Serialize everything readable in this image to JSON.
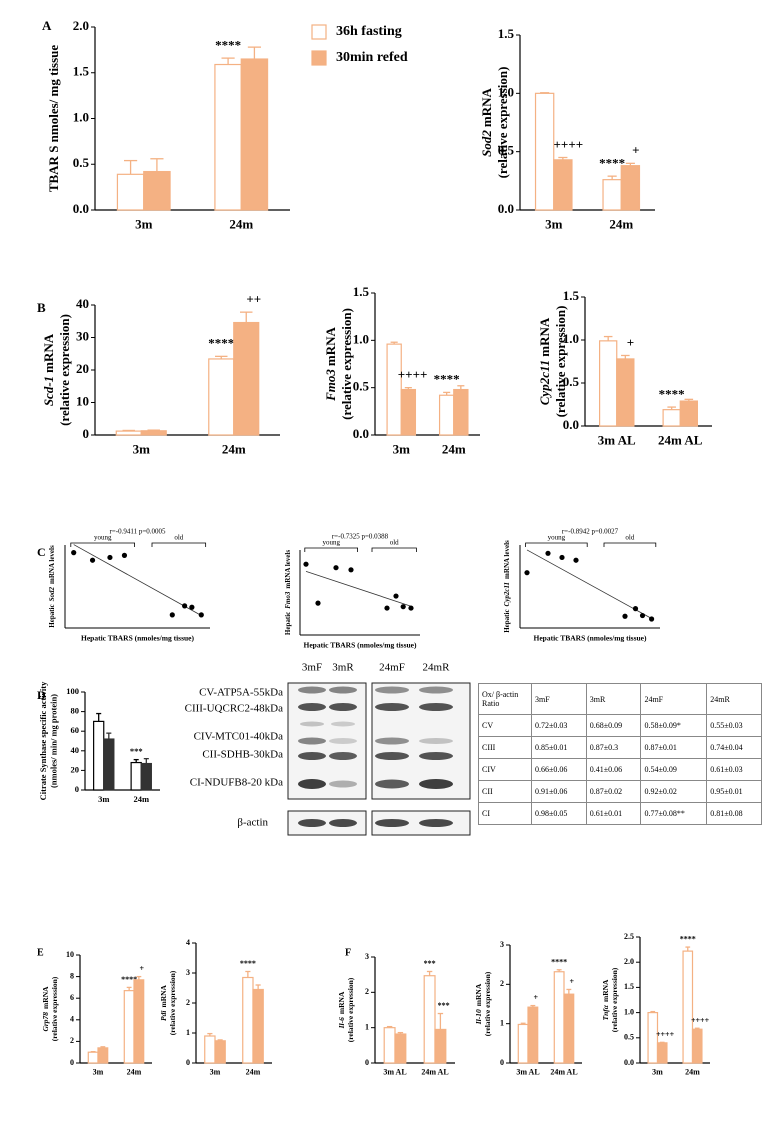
{
  "panels": [
    "A",
    "B",
    "C",
    "D",
    "E",
    "F"
  ],
  "chart_data": [
    {
      "type": "bar",
      "ylabel": "TBAR S nmoles/ mg tissue",
      "categories": [
        "3m",
        "24m"
      ],
      "series": [
        {
          "name": "36h fasting",
          "color": "#f4b183",
          "filled": false,
          "values": [
            0.39,
            1.59
          ],
          "errors": [
            0.15,
            0.07
          ],
          "annotations": [
            null,
            "****"
          ]
        },
        {
          "name": "30min refed",
          "color": "#f4b183",
          "filled": true,
          "values": [
            0.42,
            1.65
          ],
          "errors": [
            0.14,
            0.13
          ],
          "annotations": [
            null,
            null
          ]
        }
      ],
      "ylim": [
        0,
        2
      ],
      "yticks": [
        {
          "value": 0,
          "label": "0.0"
        },
        {
          "value": 0.5,
          "label": "0.5"
        },
        {
          "value": 1,
          "label": "1.0"
        },
        {
          "value": 1.5,
          "label": "1.5"
        },
        {
          "value": 2,
          "label": "2.0"
        }
      ]
    },
    {
      "type": "bar",
      "ylabel_gene": "Sod2",
      "ylabel": "mRNA",
      "ylabel_line2": "(relative expression)",
      "categories": [
        "3m",
        "24m"
      ],
      "series": [
        {
          "color": "#f4b183",
          "filled": false,
          "values": [
            1.0,
            0.26
          ],
          "errors": [
            0.005,
            0.03
          ],
          "annotations": [
            null,
            "****"
          ]
        },
        {
          "color": "#f4b183",
          "filled": true,
          "values": [
            0.43,
            0.38
          ],
          "errors": [
            0.02,
            0.02
          ],
          "annotations": [
            "++++",
            "+"
          ]
        }
      ],
      "ylim": [
        0,
        1.5
      ],
      "yticks": [
        {
          "value": 0,
          "label": "0.0"
        },
        {
          "value": 0.5,
          "label": "0.5"
        },
        {
          "value": 1,
          "label": "1.0"
        },
        {
          "value": 1.5,
          "label": "1.5"
        }
      ]
    },
    {
      "type": "bar",
      "ylabel_gene": "Scd-1",
      "ylabel": "mRNA",
      "ylabel_line2": "(relative expression)",
      "categories": [
        "3m",
        "24m"
      ],
      "series": [
        {
          "color": "#f4b183",
          "filled": false,
          "values": [
            1.2,
            23.4
          ],
          "errors": [
            0.2,
            0.8
          ],
          "annotations": [
            null,
            "****"
          ]
        },
        {
          "color": "#f4b183",
          "filled": true,
          "values": [
            1.3,
            34.6
          ],
          "errors": [
            0.2,
            3.2
          ],
          "annotations": [
            null,
            "++"
          ]
        }
      ],
      "ylim": [
        0,
        40
      ],
      "yticks": [
        0,
        10,
        20,
        30,
        40
      ]
    },
    {
      "type": "bar",
      "ylabel_gene": "Fmo3",
      "ylabel": "mRNA",
      "ylabel_line2": "(relative expression)",
      "categories": [
        "3m",
        "24m"
      ],
      "series": [
        {
          "color": "#f4b183",
          "filled": false,
          "values": [
            0.96,
            0.42
          ],
          "errors": [
            0.02,
            0.03
          ],
          "annotations": [
            null,
            "****"
          ]
        },
        {
          "color": "#f4b183",
          "filled": true,
          "values": [
            0.48,
            0.48
          ],
          "errors": [
            0.02,
            0.04
          ],
          "annotations": [
            "++++",
            null
          ]
        }
      ],
      "ylim": [
        0,
        1.5
      ],
      "yticks": [
        {
          "value": 0,
          "label": "0.0"
        },
        {
          "value": 0.5,
          "label": "0.5"
        },
        {
          "value": 1,
          "label": "1.0"
        },
        {
          "value": 1.5,
          "label": "1.5"
        }
      ]
    },
    {
      "type": "bar",
      "ylabel_gene": "Cyp2c11",
      "ylabel": "mRNA",
      "ylabel_line2": "(relative expression)",
      "categories": [
        "3m AL",
        "24m AL"
      ],
      "series": [
        {
          "color": "#f4b183",
          "filled": false,
          "values": [
            0.99,
            0.19
          ],
          "errors": [
            0.05,
            0.03
          ],
          "annotations": [
            null,
            "****"
          ]
        },
        {
          "color": "#f4b183",
          "filled": true,
          "values": [
            0.78,
            0.29
          ],
          "errors": [
            0.04,
            0.02
          ],
          "annotations": [
            "+",
            null
          ]
        }
      ],
      "ylim": [
        0,
        1.5
      ],
      "yticks": [
        {
          "value": 0,
          "label": "0.0"
        },
        {
          "value": 0.5,
          "label": "0.5"
        },
        {
          "value": 1,
          "label": "1.0"
        },
        {
          "value": 1.5,
          "label": "1.5"
        }
      ]
    },
    {
      "type": "scatter",
      "title": "r=-0.9411 p=0.0005",
      "xlabel": "Hepatic TBARS (nmoles/mg tissue)",
      "ylabel_pre": "Hepatic",
      "ylabel_gene": "Sod2",
      "ylabel": "mRNA levels",
      "bracket_labels": [
        "young",
        "old"
      ],
      "color": "#000000",
      "x": [
        0.12,
        0.38,
        0.62,
        0.82,
        1.48,
        1.65,
        1.75,
        1.88
      ],
      "y": [
        1.09,
        0.98,
        1.02,
        1.05,
        0.19,
        0.32,
        0.3,
        0.19
      ],
      "xlim": [
        0,
        2
      ],
      "ylim": [
        0,
        1.2
      ]
    },
    {
      "type": "scatter",
      "title": "r=-0.7325 p=0.0388",
      "xlabel": "Hepatic TBARS (nmoles/mg tissue)",
      "ylabel_pre": "Hepatic",
      "ylabel_gene": "Fmo3",
      "ylabel": "mRNA levels",
      "bracket_labels": [
        "young",
        "old"
      ],
      "color": "#000000",
      "x": [
        0.1,
        0.3,
        0.6,
        0.85,
        1.45,
        1.6,
        1.72,
        1.85
      ],
      "y": [
        1.0,
        0.45,
        0.95,
        0.92,
        0.38,
        0.55,
        0.4,
        0.38
      ],
      "xlim": [
        0,
        2
      ],
      "ylim": [
        0,
        1.2
      ]
    },
    {
      "type": "scatter",
      "title": "r=-0.8942 p=0.0027",
      "xlabel": "Hepatic TBARS (nmoles/mg tissue)",
      "ylabel_pre": "Hepatic",
      "ylabel_gene": "Cyp2c11",
      "ylabel": "mRNA levels",
      "bracket_labels": [
        "young",
        "old"
      ],
      "color": "#000000",
      "x": [
        0.1,
        0.4,
        0.6,
        0.8,
        1.5,
        1.65,
        1.75,
        1.88
      ],
      "y": [
        0.8,
        1.08,
        1.02,
        0.98,
        0.17,
        0.28,
        0.18,
        0.13
      ],
      "xlim": [
        0,
        2
      ],
      "ylim": [
        0,
        1.2
      ]
    },
    {
      "type": "bar",
      "ylabel": "Citrate Synthase specific activity",
      "ylabel_line2": "(nmoles/ min/ mg protein)",
      "categories": [
        "3m",
        "24m"
      ],
      "series": [
        {
          "color": "#000000",
          "filled": false,
          "values": [
            70,
            28
          ],
          "errors": [
            8,
            3
          ],
          "annotations": [
            null,
            "***"
          ]
        },
        {
          "color": "#333333",
          "filled": true,
          "values": [
            52,
            27
          ],
          "errors": [
            6,
            5
          ],
          "annotations": [
            null,
            null
          ]
        }
      ],
      "ylim": [
        0,
        100
      ],
      "yticks": [
        0,
        20,
        40,
        60,
        80,
        100
      ]
    },
    {
      "type": "bar",
      "ylabel_gene": "Grp78",
      "ylabel": "mRNA",
      "ylabel_line2": "(relative expression)",
      "categories": [
        "3m",
        "24m"
      ],
      "series": [
        {
          "color": "#f4b183",
          "filled": false,
          "values": [
            1.0,
            6.7
          ],
          "errors": [
            0.05,
            0.3
          ],
          "annotations": [
            null,
            "****"
          ]
        },
        {
          "color": "#f4b183",
          "filled": true,
          "values": [
            1.4,
            7.7
          ],
          "errors": [
            0.1,
            0.3
          ],
          "annotations": [
            null,
            "+"
          ]
        }
      ],
      "ylim": [
        0,
        10
      ],
      "yticks": [
        0,
        2,
        4,
        6,
        8,
        10
      ]
    },
    {
      "type": "bar",
      "ylabel_gene": "Pdi",
      "ylabel": "mRNA",
      "ylabel_line2": "(relative expression)",
      "categories": [
        "3m",
        "24m"
      ],
      "series": [
        {
          "color": "#f4b183",
          "filled": false,
          "values": [
            0.9,
            2.85
          ],
          "errors": [
            0.08,
            0.2
          ],
          "annotations": [
            null,
            "****"
          ]
        },
        {
          "color": "#f4b183",
          "filled": true,
          "values": [
            0.74,
            2.45
          ],
          "errors": [
            0.03,
            0.15
          ],
          "annotations": [
            null,
            null
          ]
        }
      ],
      "ylim": [
        0,
        4
      ],
      "yticks": [
        0,
        1,
        2,
        3,
        4
      ]
    },
    {
      "type": "bar",
      "ylabel_gene": "Il-6",
      "ylabel": "mRNA",
      "ylabel_line2": "(relative expression)",
      "categories": [
        "3m AL",
        "24m AL"
      ],
      "series": [
        {
          "color": "#f4b183",
          "filled": false,
          "values": [
            1.0,
            2.47
          ],
          "errors": [
            0.03,
            0.12
          ],
          "annotations": [
            null,
            "***"
          ]
        },
        {
          "color": "#f4b183",
          "filled": true,
          "values": [
            0.82,
            0.95
          ],
          "errors": [
            0.04,
            0.45
          ],
          "annotations": [
            null,
            "***"
          ]
        }
      ],
      "ylim": [
        0,
        3
      ],
      "yticks": [
        0,
        1,
        2,
        3
      ]
    },
    {
      "type": "bar",
      "ylabel_gene": "Il-10",
      "ylabel": "mRNA",
      "ylabel_line2": "(relative expression)",
      "categories": [
        "3m AL",
        "24m AL"
      ],
      "series": [
        {
          "color": "#f4b183",
          "filled": false,
          "values": [
            0.98,
            2.32
          ],
          "errors": [
            0.03,
            0.05
          ],
          "annotations": [
            null,
            "****"
          ]
        },
        {
          "color": "#f4b183",
          "filled": true,
          "values": [
            1.42,
            1.75
          ],
          "errors": [
            0.04,
            0.12
          ],
          "annotations": [
            "+",
            "+"
          ]
        }
      ],
      "ylim": [
        0,
        3
      ],
      "yticks": [
        0,
        1,
        2,
        3
      ]
    },
    {
      "type": "bar",
      "ylabel_gene": "Tnfα",
      "ylabel": "mRNA",
      "ylabel_line2": "(relative expression)",
      "categories": [
        "3m",
        "24m"
      ],
      "series": [
        {
          "color": "#f4b183",
          "filled": false,
          "values": [
            1.0,
            2.22
          ],
          "errors": [
            0.02,
            0.08
          ],
          "annotations": [
            null,
            "****"
          ]
        },
        {
          "color": "#f4b183",
          "filled": true,
          "values": [
            0.4,
            0.67
          ],
          "errors": [
            0.01,
            0.02
          ],
          "annotations": [
            "++++",
            "++++"
          ]
        }
      ],
      "ylim": [
        0,
        2.5
      ],
      "yticks": [
        {
          "value": 0,
          "label": "0.0"
        },
        {
          "value": 0.5,
          "label": "0.5"
        },
        {
          "value": 1,
          "label": "1.0"
        },
        {
          "value": 1.5,
          "label": "1.5"
        },
        {
          "value": 2,
          "label": "2.0"
        },
        {
          "value": 2.5,
          "label": "2.5"
        }
      ]
    }
  ],
  "blot": {
    "lanes": [
      "3mF",
      "3mR",
      "24mF",
      "24mR"
    ],
    "bands": [
      "CV-ATP5A-55kDa",
      "CIII-UQCRC2-48kDa",
      "CIV-MTC01-40kDa",
      "CII-SDHB-30kDa",
      "CI-NDUFB8-20 kDa"
    ],
    "loading": "β-actin"
  },
  "table": {
    "header": [
      "Ox/ β-actin Ratio",
      "3mF",
      "3mR",
      "24mF",
      "24mR"
    ],
    "rows": [
      [
        "CV",
        "0.72±0.03",
        "0.68±0.09",
        "0.58±0.09*",
        "0.55±0.03"
      ],
      [
        "CIII",
        "0.85±0.01",
        "0.87±0.3",
        "0.87±0.01",
        "0.74±0.04"
      ],
      [
        "CIV",
        "0.66±0.06",
        "0.41±0.06",
        "0.54±0.09",
        "0.61±0.03"
      ],
      [
        "CII",
        "0.91±0.06",
        "0.87±0.02",
        "0.92±0.02",
        "0.95±0.01"
      ],
      [
        "CI",
        "0.98±0.05",
        "0.61±0.01",
        "0.77±0.08**",
        "0.81±0.08"
      ]
    ]
  }
}
